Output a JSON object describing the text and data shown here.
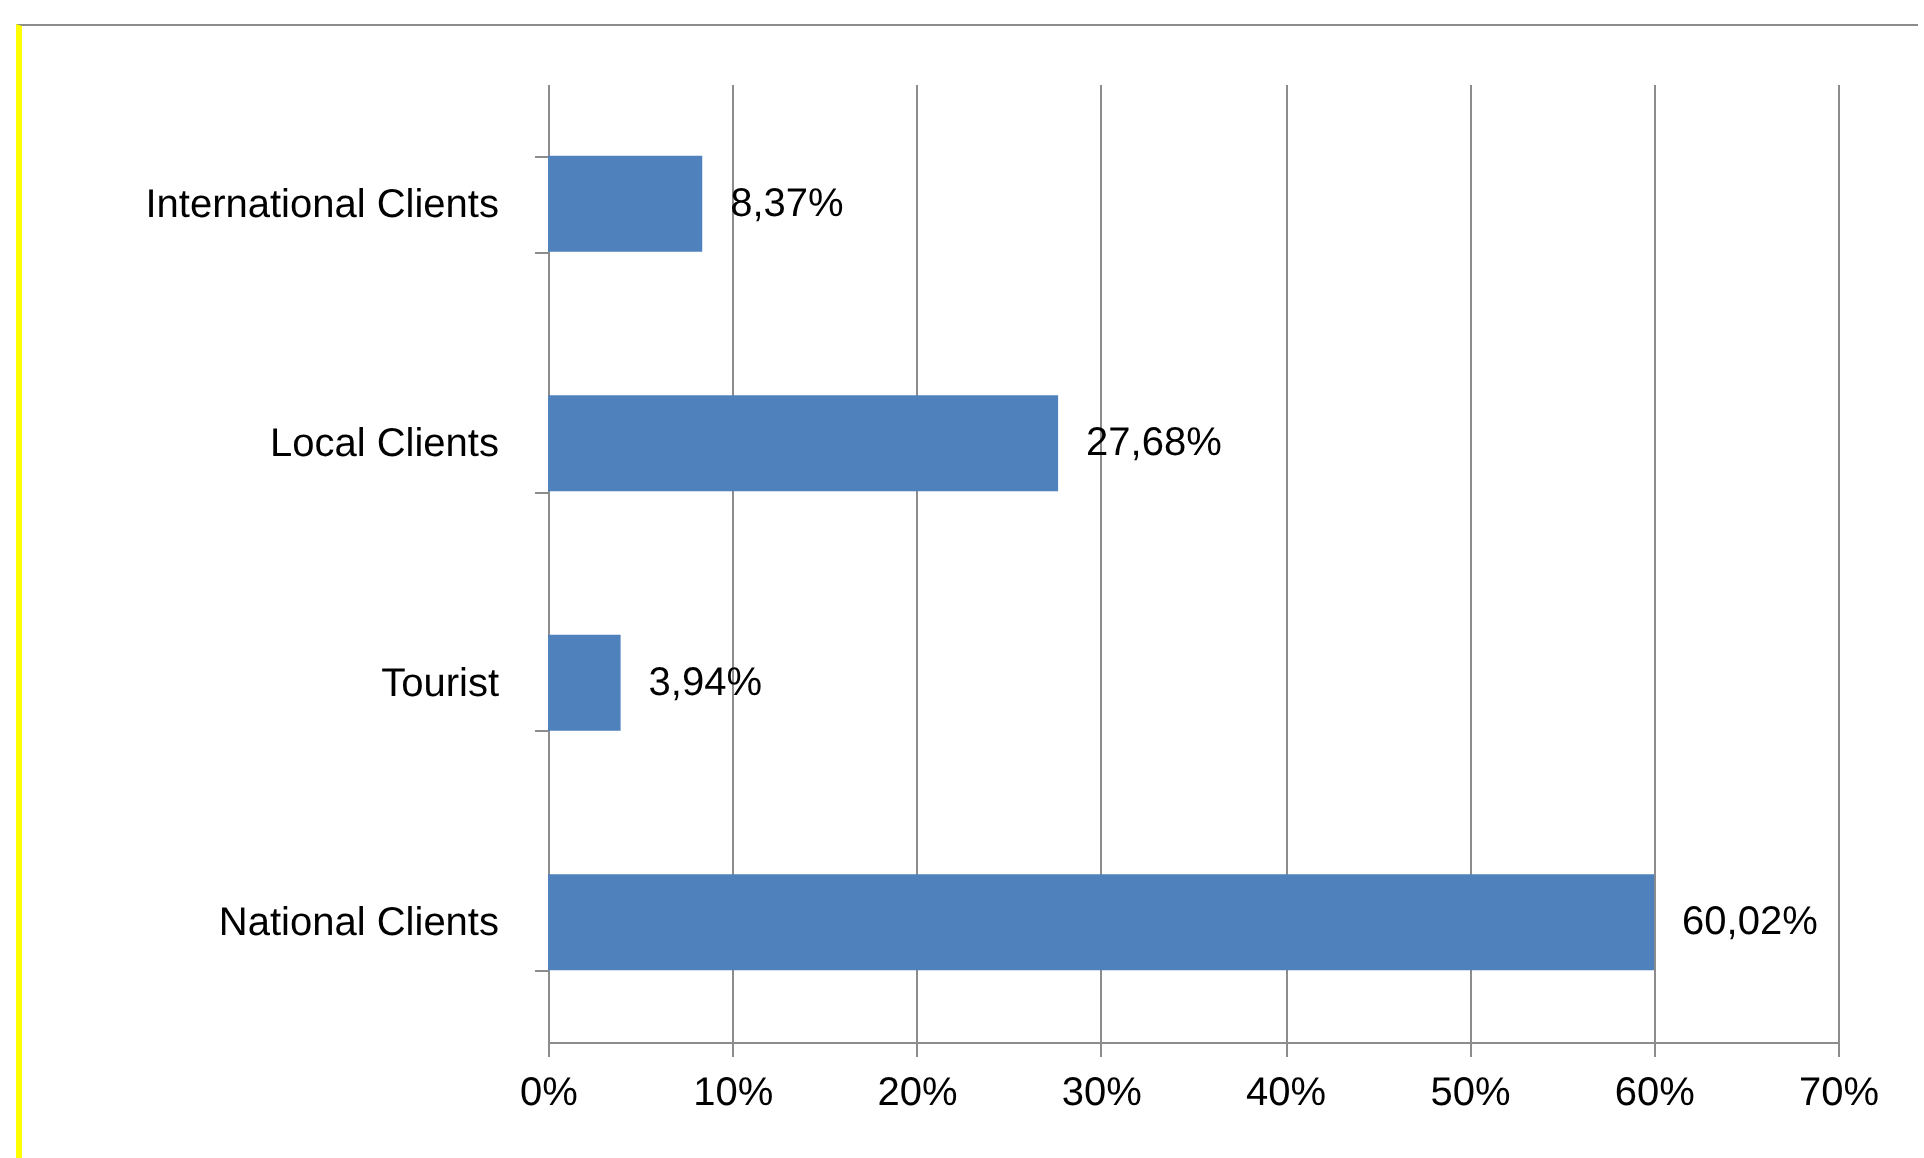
{
  "chart_data": {
    "type": "bar",
    "orientation": "horizontal",
    "categories": [
      "International Clients",
      "Local Clients",
      "Tourist",
      "National Clients"
    ],
    "values": [
      8.37,
      27.68,
      3.94,
      60.02
    ],
    "color": "#4f81bd",
    "value_labels": [
      "8,37%",
      "27,68%",
      "3,94%",
      "60,02%"
    ],
    "xlim": [
      0,
      70
    ],
    "xticks": [
      {
        "value": 0,
        "label": "0%"
      },
      {
        "value": 10,
        "label": "10%"
      },
      {
        "value": 20,
        "label": "20%"
      },
      {
        "value": 30,
        "label": "30%"
      },
      {
        "value": 40,
        "label": "40%"
      },
      {
        "value": 50,
        "label": "50%"
      },
      {
        "value": 60,
        "label": "60%"
      },
      {
        "value": 70,
        "label": "70%"
      }
    ],
    "grid": "x"
  }
}
